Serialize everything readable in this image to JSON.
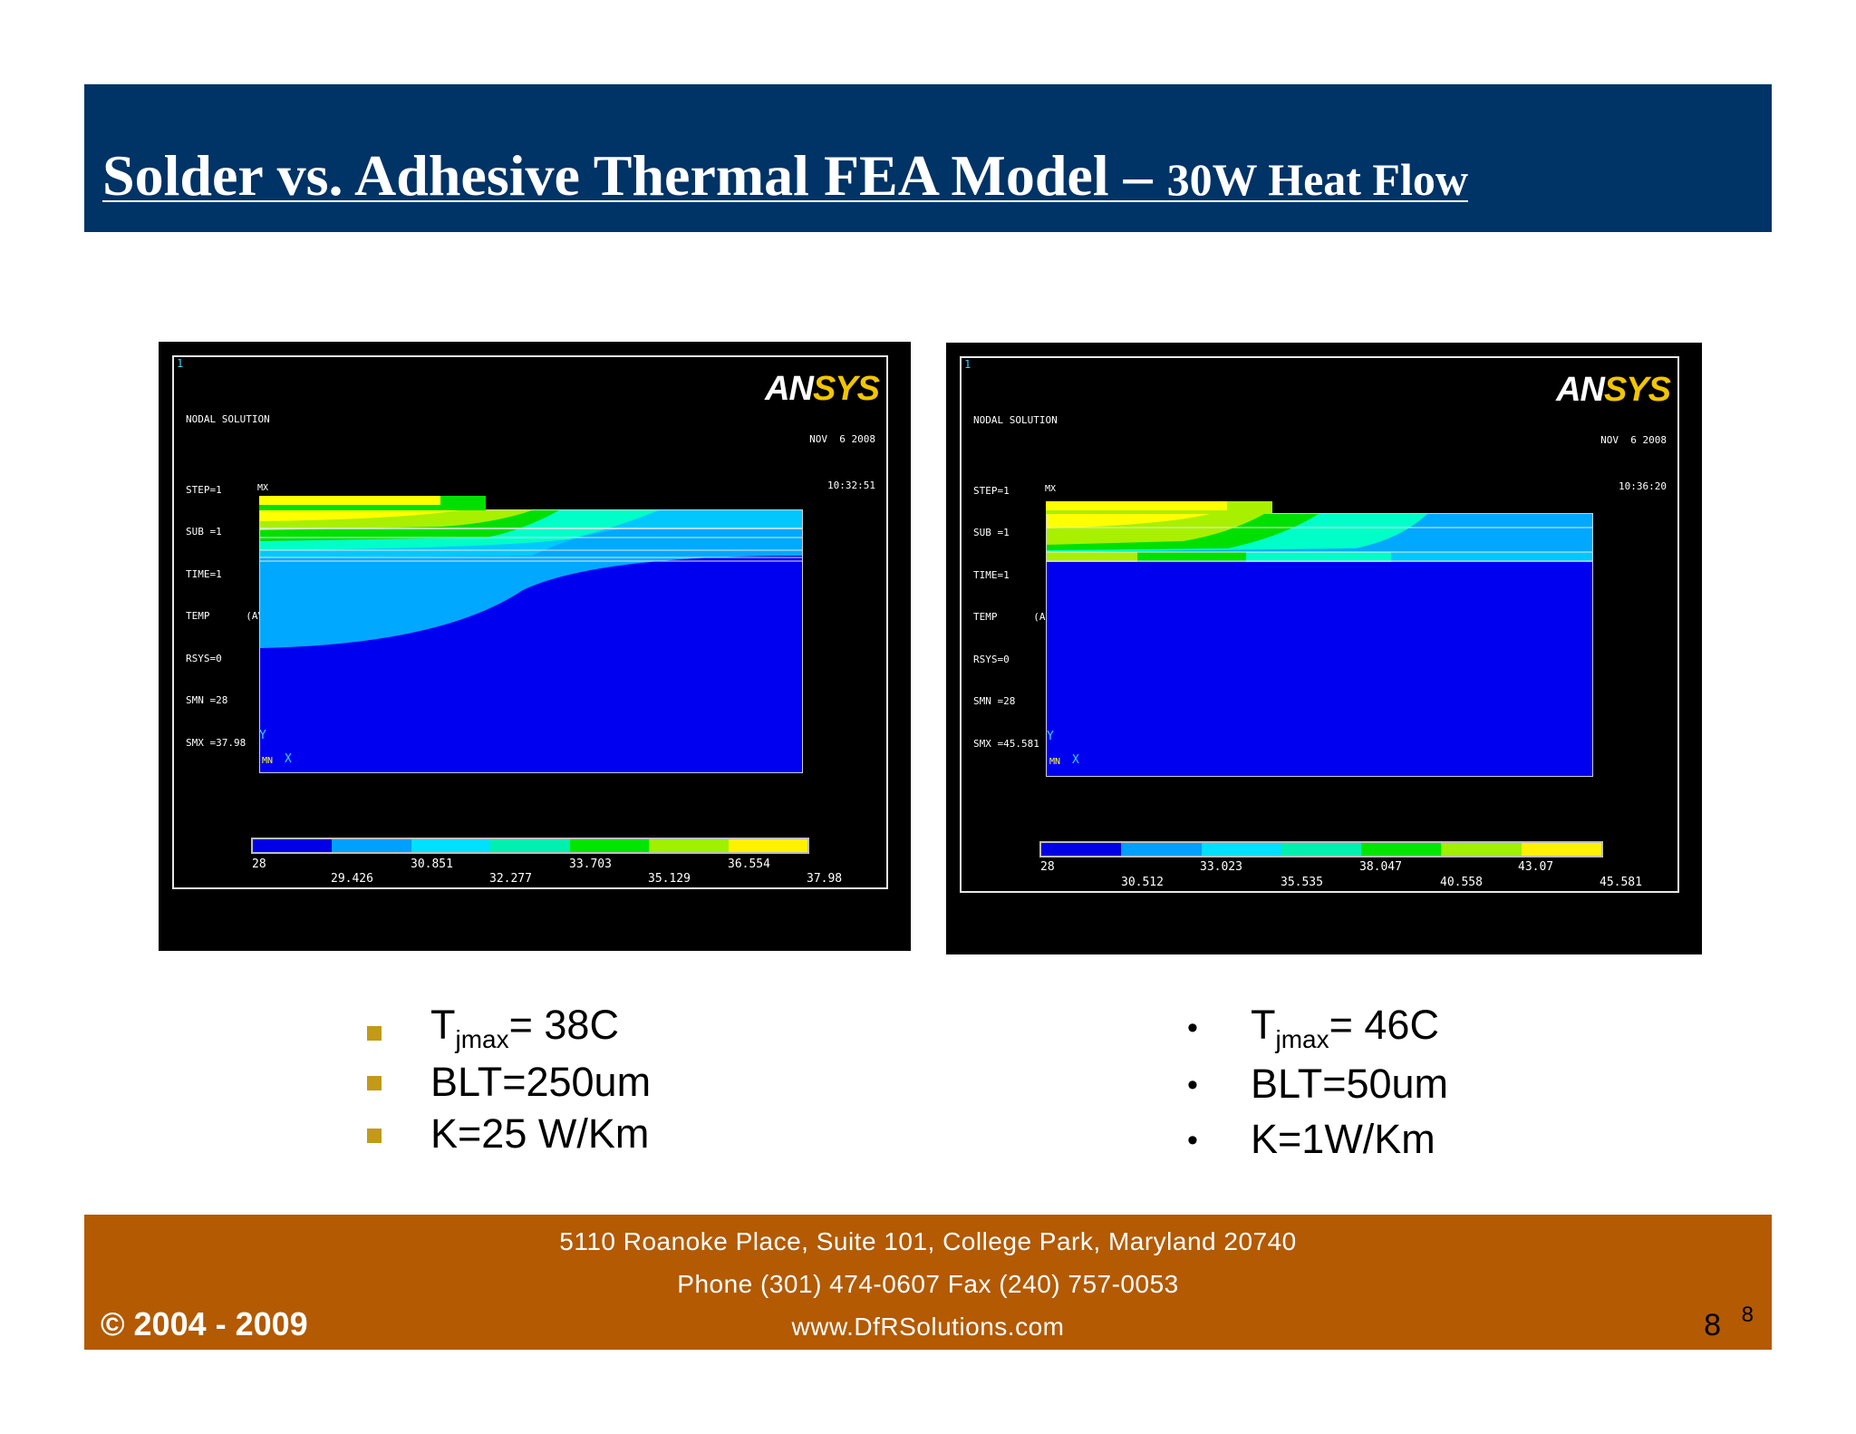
{
  "title": {
    "main": "Solder vs. Adhesive Thermal FEA Model",
    "dash": " – ",
    "sub": "30W Heat Flow"
  },
  "panels": [
    {
      "corner": "1",
      "info": [
        "NODAL SOLUTION",
        "",
        "STEP=1",
        "SUB =1",
        "TIME=1",
        "TEMP      (AVG)",
        "RSYS=0",
        "SMN =28",
        "SMX =37.98"
      ],
      "mx": "MX",
      "date": "NOV  6 2008",
      "time": "10:32:51",
      "logo_a": "AN",
      "logo_b": "SYS",
      "axis_y": "Y",
      "axis_mn": "MN",
      "axis_x": "X",
      "legend_top": [
        "28",
        "30.851",
        "33.703",
        "36.554"
      ],
      "legend_bottom": [
        "29.426",
        "32.277",
        "35.129",
        "37.98"
      ]
    },
    {
      "corner": "1",
      "info": [
        "NODAL SOLUTION",
        "",
        "STEP=1",
        "SUB =1",
        "TIME=1",
        "TEMP      (AVG)",
        "RSYS=0",
        "SMN =28",
        "SMX =45.581"
      ],
      "mx": "MX",
      "date": "NOV  6 2008",
      "time": "10:36:20",
      "logo_a": "AN",
      "logo_b": "SYS",
      "axis_y": "Y",
      "axis_mn": "MN",
      "axis_x": "X",
      "legend_top": [
        "28",
        "33.023",
        "38.047",
        "43.07"
      ],
      "legend_bottom": [
        "30.512",
        "35.535",
        "40.558",
        "45.581"
      ]
    }
  ],
  "legend_colors": [
    "#0000e6",
    "#00a0ff",
    "#00e0ff",
    "#00f0b0",
    "#00e600",
    "#a0f000",
    "#fff200",
    "#ffff30"
  ],
  "bullets_left": [
    {
      "pre": "T",
      "sub": "jmax",
      "post": "= 38C"
    },
    {
      "pre": "BLT=250um"
    },
    {
      "pre": "K=25 W/Km"
    }
  ],
  "bullets_right": [
    {
      "pre": "T",
      "sub": "jmax",
      "post": "= 46C"
    },
    {
      "pre": "BLT=50um"
    },
    {
      "pre": "K=1W/Km"
    }
  ],
  "bullet_dot": "•",
  "footer": {
    "line1": "5110 Roanoke Place, Suite 101, College Park, Maryland 20740",
    "line2": "Phone (301) 474-0607  Fax (240) 757-0053",
    "line3": "www.DfRSolutions.com",
    "copyright": "© 2004 - 2009",
    "page_number": "8",
    "page_number_small": "8"
  }
}
